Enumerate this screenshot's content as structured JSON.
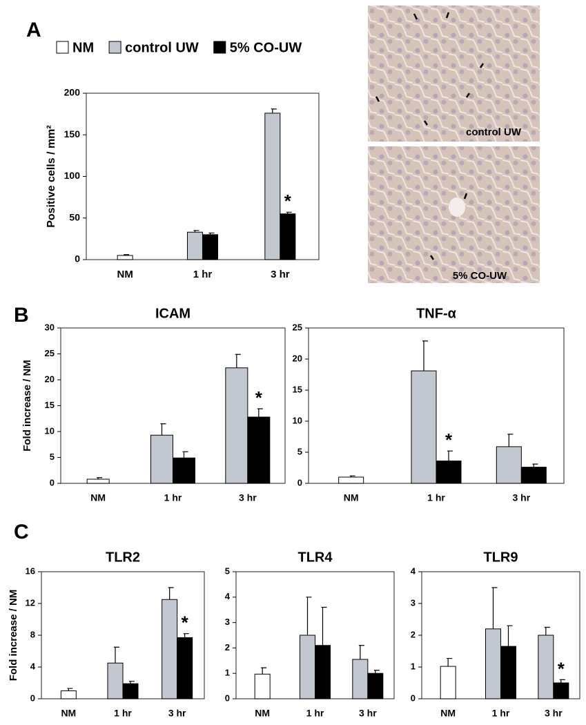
{
  "panel_labels": [
    "A",
    "B",
    "C"
  ],
  "micrographs": [
    "control UW",
    "5% CO-UW"
  ],
  "chart_data": [
    {
      "type": "bar",
      "ylabel": "Positive cells / mm²",
      "categories": [
        "NM",
        "1 hr",
        "3 hr"
      ],
      "series": [
        {
          "name": "NM",
          "color": "#ffffff",
          "values": [
            5,
            null,
            null
          ],
          "errors": [
            1,
            null,
            null
          ]
        },
        {
          "name": "control UW",
          "color": "#c3c7cf",
          "values": [
            null,
            33,
            176
          ],
          "errors": [
            null,
            2,
            5
          ]
        },
        {
          "name": "5% CO-UW",
          "color": "#000000",
          "values": [
            null,
            30,
            55
          ],
          "errors": [
            null,
            2,
            2
          ]
        }
      ],
      "ylim": [
        0,
        200
      ],
      "yticks": [
        0,
        50,
        100,
        150,
        200
      ],
      "annotations": [
        {
          "text": "*",
          "category": "3 hr"
        }
      ]
    },
    {
      "type": "bar",
      "title": "ICAM",
      "ylabel": "Fold increase / NM",
      "categories": [
        "NM",
        "1 hr",
        "3 hr"
      ],
      "series": [
        {
          "color": "#ffffff",
          "values": [
            0.8,
            null,
            null
          ],
          "errors": [
            0.3,
            null,
            null
          ]
        },
        {
          "color": "#c3c7cf",
          "values": [
            null,
            9.3,
            22.3
          ],
          "errors": [
            null,
            2.2,
            2.6
          ]
        },
        {
          "color": "#000000",
          "values": [
            null,
            4.9,
            12.8
          ],
          "errors": [
            null,
            1.2,
            1.6
          ]
        }
      ],
      "ylim": [
        0,
        30
      ],
      "yticks": [
        0,
        5,
        10,
        15,
        20,
        25,
        30
      ],
      "annotations": [
        {
          "text": "*",
          "category": "3 hr"
        }
      ]
    },
    {
      "type": "bar",
      "title": "TNF-α",
      "categories": [
        "NM",
        "1 hr",
        "3 hr"
      ],
      "series": [
        {
          "color": "#ffffff",
          "values": [
            1.0,
            null,
            null
          ],
          "errors": [
            0.2,
            null,
            null
          ]
        },
        {
          "color": "#c3c7cf",
          "values": [
            null,
            18.1,
            5.9
          ],
          "errors": [
            null,
            4.8,
            2.0
          ]
        },
        {
          "color": "#000000",
          "values": [
            null,
            3.6,
            2.6
          ],
          "errors": [
            null,
            1.6,
            0.5
          ]
        }
      ],
      "ylim": [
        0,
        25
      ],
      "yticks": [
        0,
        5,
        10,
        15,
        20,
        25
      ],
      "annotations": [
        {
          "text": "*",
          "category": "1 hr"
        }
      ]
    },
    {
      "type": "bar",
      "title": "TLR2",
      "ylabel": "Fold increase / NM",
      "categories": [
        "NM",
        "1 hr",
        "3 hr"
      ],
      "series": [
        {
          "color": "#ffffff",
          "values": [
            1.0,
            null,
            null
          ],
          "errors": [
            0.3,
            null,
            null
          ]
        },
        {
          "color": "#c3c7cf",
          "values": [
            null,
            4.5,
            12.5
          ],
          "errors": [
            null,
            2.0,
            1.5
          ]
        },
        {
          "color": "#000000",
          "values": [
            null,
            1.9,
            7.7
          ],
          "errors": [
            null,
            0.3,
            0.5
          ]
        }
      ],
      "ylim": [
        0,
        16
      ],
      "yticks": [
        0,
        4,
        8,
        12,
        16
      ],
      "annotations": [
        {
          "text": "*",
          "category": "3 hr"
        }
      ]
    },
    {
      "type": "bar",
      "title": "TLR4",
      "categories": [
        "NM",
        "1 hr",
        "3 hr"
      ],
      "series": [
        {
          "color": "#ffffff",
          "values": [
            0.97,
            null,
            null
          ],
          "errors": [
            0.25,
            null,
            null
          ]
        },
        {
          "color": "#c3c7cf",
          "values": [
            null,
            2.5,
            1.55
          ],
          "errors": [
            null,
            1.5,
            0.55
          ]
        },
        {
          "color": "#000000",
          "values": [
            null,
            2.1,
            1.0
          ],
          "errors": [
            null,
            1.5,
            0.12
          ]
        }
      ],
      "ylim": [
        0,
        5
      ],
      "yticks": [
        0,
        1,
        2,
        3,
        4,
        5
      ]
    },
    {
      "type": "bar",
      "title": "TLR9",
      "categories": [
        "NM",
        "1 hr",
        "3 hr"
      ],
      "series": [
        {
          "color": "#ffffff",
          "values": [
            1.02,
            null,
            null
          ],
          "errors": [
            0.25,
            null,
            null
          ]
        },
        {
          "color": "#c3c7cf",
          "values": [
            null,
            2.2,
            2.0
          ],
          "errors": [
            null,
            1.3,
            0.25
          ]
        },
        {
          "color": "#000000",
          "values": [
            null,
            1.65,
            0.5
          ],
          "errors": [
            null,
            0.65,
            0.1
          ]
        }
      ],
      "ylim": [
        0,
        4
      ],
      "yticks": [
        0,
        1,
        2,
        3,
        4
      ],
      "annotations": [
        {
          "text": "*",
          "category": "3 hr"
        }
      ]
    }
  ]
}
